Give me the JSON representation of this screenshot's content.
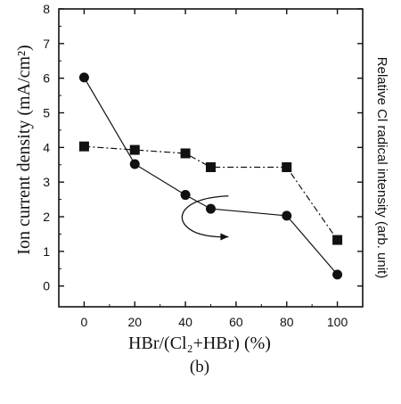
{
  "chart_data": {
    "type": "line",
    "panel_label": "(b)",
    "xlabel": "HBr/(Cl₂+HBr) (%)",
    "ylabel_left": "Ion current density (mA/cm²)",
    "ylabel_right": "Relative Cl radical intensity (arb. unit)",
    "xlim": [
      -10,
      110
    ],
    "ylim": [
      -0.6,
      8
    ],
    "x_ticks": [
      0,
      20,
      40,
      60,
      80,
      100
    ],
    "y_ticks": [
      0,
      1,
      2,
      3,
      4,
      5,
      6,
      7,
      8
    ],
    "grid": false,
    "series": [
      {
        "marker": "circle",
        "axis": "left",
        "x": [
          0,
          20,
          40,
          50,
          80,
          100
        ],
        "y": [
          6.02,
          3.52,
          2.63,
          2.23,
          2.03,
          0.33
        ]
      },
      {
        "marker": "square",
        "axis": "right",
        "x": [
          0,
          20,
          40,
          50,
          80,
          100
        ],
        "y": [
          4.03,
          3.93,
          3.83,
          3.43,
          3.43,
          1.33
        ]
      }
    ],
    "annotations": [
      {
        "type": "curved-arrow",
        "description": "arrow pointing from circle series toward square series (right axis)"
      }
    ]
  }
}
